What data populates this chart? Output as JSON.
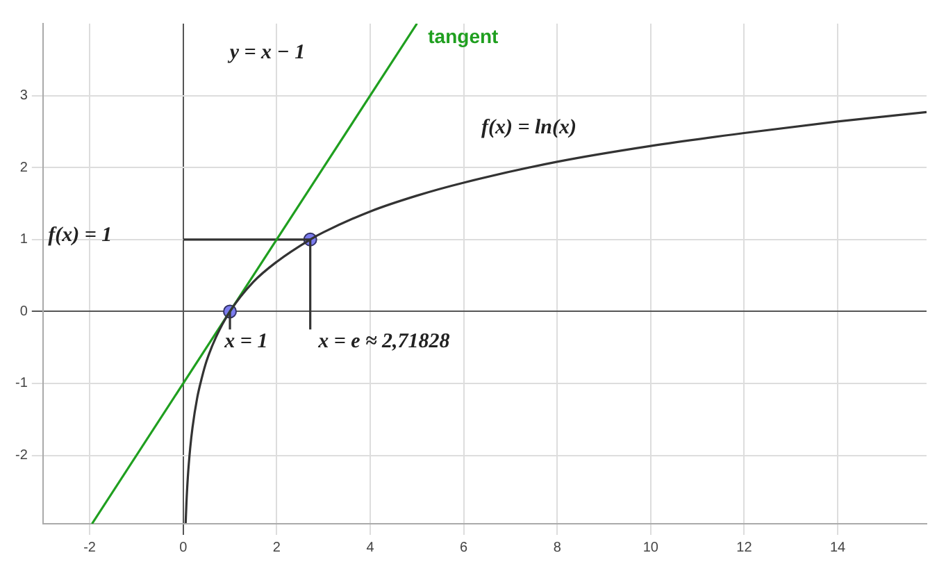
{
  "chart_data": {
    "type": "line",
    "xlim": [
      -3,
      15.9
    ],
    "ylim": [
      -2.95,
      4
    ],
    "xticks": [
      -2,
      0,
      2,
      4,
      6,
      8,
      10,
      12,
      14
    ],
    "yticks": [
      -2,
      -1,
      0,
      1,
      2,
      3
    ],
    "grid": true,
    "legend": false,
    "series": [
      {
        "color": "#333333",
        "marker": "none",
        "x": [
          0.053,
          0.07,
          0.1,
          0.15,
          0.2,
          0.3,
          0.4,
          0.5,
          0.7,
          1,
          1.5,
          2,
          2.718,
          3,
          4,
          5,
          6,
          8,
          10,
          12,
          14,
          15.9
        ],
        "values": [
          -2.94,
          -2.66,
          -2.3,
          -1.9,
          -1.61,
          -1.2,
          -0.92,
          -0.69,
          -0.36,
          0,
          0.41,
          0.69,
          1,
          1.1,
          1.39,
          1.61,
          1.79,
          2.08,
          2.3,
          2.48,
          2.64,
          2.77
        ]
      },
      {
        "name": "tangent",
        "color": "#1f9f1f",
        "marker": "none",
        "x": [
          -1.95,
          5
        ],
        "values": [
          -2.95,
          4
        ]
      },
      {
        "color": "#333333",
        "marker": "none",
        "x": [
          0,
          2.718
        ],
        "values": [
          1,
          1
        ]
      },
      {
        "color": "#333333",
        "marker": "none",
        "x": [
          2.718,
          2.718
        ],
        "values": [
          -0.25,
          1
        ]
      },
      {
        "color": "#333333",
        "marker": "none",
        "x": [
          1,
          1
        ],
        "values": [
          -0.25,
          0
        ]
      },
      {
        "type": "scatter",
        "color": "#7b7bef",
        "marker": "circle",
        "x": [
          1,
          2.718
        ],
        "values": [
          0,
          1
        ]
      }
    ],
    "annotations": [
      "y = x − 1",
      "f(x) = ln(x)",
      "f(x) = 1",
      "x = 1",
      "x = e ≈ 2,71828"
    ]
  }
}
